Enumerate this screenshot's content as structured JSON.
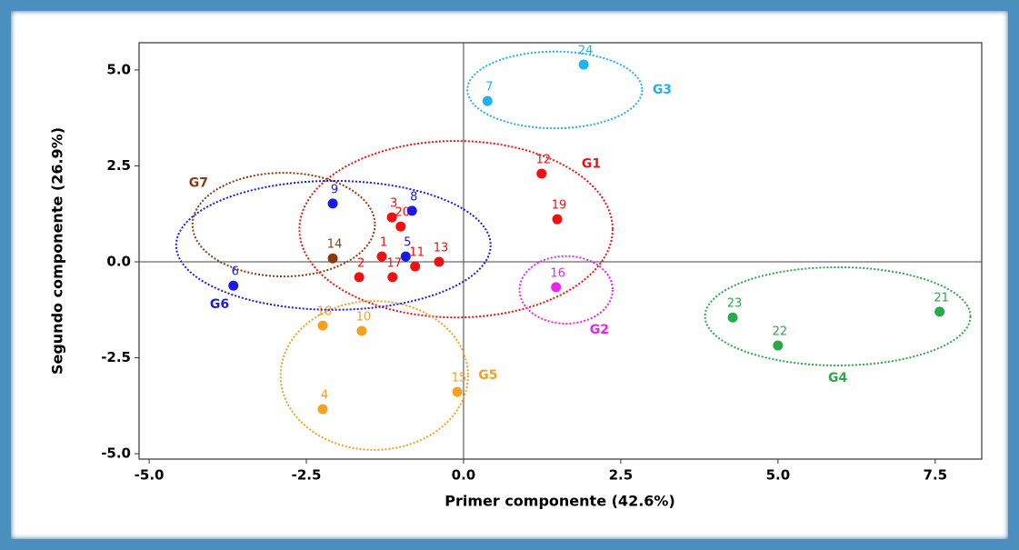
{
  "chart_data": {
    "type": "scatter",
    "x_label": "Primer componente (42.6%)",
    "y_label": "Segundo componente (26.9%)",
    "xlim": [
      -5.16,
      8.24
    ],
    "ylim": [
      -5.14,
      5.71
    ],
    "xticks": [
      {
        "value": -5,
        "label": "-5.0"
      },
      {
        "value": -2.5,
        "label": "-2.5"
      },
      {
        "value": 0,
        "label": "0.0"
      },
      {
        "value": 2.5,
        "label": "2.5"
      },
      {
        "value": 5,
        "label": "5.0"
      },
      {
        "value": 7.5,
        "label": "7.5"
      }
    ],
    "yticks": [
      {
        "value": -5,
        "label": "-5.0"
      },
      {
        "value": -2.5,
        "label": "-2.5"
      },
      {
        "value": 0,
        "label": "0.0"
      },
      {
        "value": 2.5,
        "label": "2.5"
      },
      {
        "value": 5,
        "label": "5.0"
      }
    ],
    "series": [
      {
        "name": "G1",
        "color": "#ee1111",
        "label_side": "ne",
        "ellipse": [
          -0.12,
          0.85,
          2.49,
          2.3
        ],
        "labels": [
          "12",
          "19",
          "3",
          "20",
          "1",
          "2",
          "17",
          "11",
          "13"
        ],
        "x": [
          1.24,
          1.49,
          -1.14,
          -1.0,
          -1.3,
          -1.66,
          -1.13,
          -0.77,
          -0.39
        ],
        "values": [
          2.3,
          1.11,
          1.16,
          0.92,
          0.14,
          -0.4,
          -0.4,
          -0.12,
          0.0
        ]
      },
      {
        "name": "G2",
        "color": "#ee22ee",
        "label_side": "se",
        "ellipse": [
          1.63,
          -0.73,
          0.74,
          0.88
        ],
        "labels": [
          "16"
        ],
        "x": [
          1.47
        ],
        "values": [
          -0.66
        ]
      },
      {
        "name": "G3",
        "color": "#1eb4ea",
        "label_side": "e",
        "ellipse": [
          1.45,
          4.48,
          1.39,
          1.0
        ],
        "labels": [
          "24",
          "7"
        ],
        "x": [
          1.91,
          0.38
        ],
        "values": [
          5.14,
          4.19
        ]
      },
      {
        "name": "G4",
        "color": "#2aa84a",
        "label_side": "s",
        "ellipse": [
          5.95,
          -1.42,
          2.11,
          1.28
        ],
        "labels": [
          "23",
          "22",
          "21"
        ],
        "x": [
          4.28,
          5.0,
          7.57
        ],
        "values": [
          -1.45,
          -2.18,
          -1.3
        ]
      },
      {
        "name": "G5",
        "color": "#f5a020",
        "label_side": "e",
        "ellipse": [
          -1.42,
          -2.96,
          1.49,
          1.94
        ],
        "labels": [
          "18",
          "10",
          "15",
          "4"
        ],
        "x": [
          -2.24,
          -1.62,
          -0.1,
          -2.24
        ],
        "values": [
          -1.66,
          -1.8,
          -3.39,
          -3.84
        ]
      },
      {
        "name": "G6",
        "color": "#1a1ae6",
        "label_side": "sw",
        "ellipse": [
          -2.07,
          0.43,
          2.5,
          1.68
        ],
        "labels": [
          "8",
          "9",
          "5",
          "6"
        ],
        "x": [
          -0.82,
          -2.08,
          -0.92,
          -3.66
        ],
        "values": [
          1.33,
          1.52,
          0.14,
          -0.62
        ]
      },
      {
        "name": "G7",
        "color": "#8b3a10",
        "label_side": "nw",
        "ellipse": [
          -2.86,
          0.97,
          1.45,
          1.35
        ],
        "labels": [
          "14"
        ],
        "x": [
          -2.08
        ],
        "values": [
          0.09
        ]
      }
    ]
  }
}
